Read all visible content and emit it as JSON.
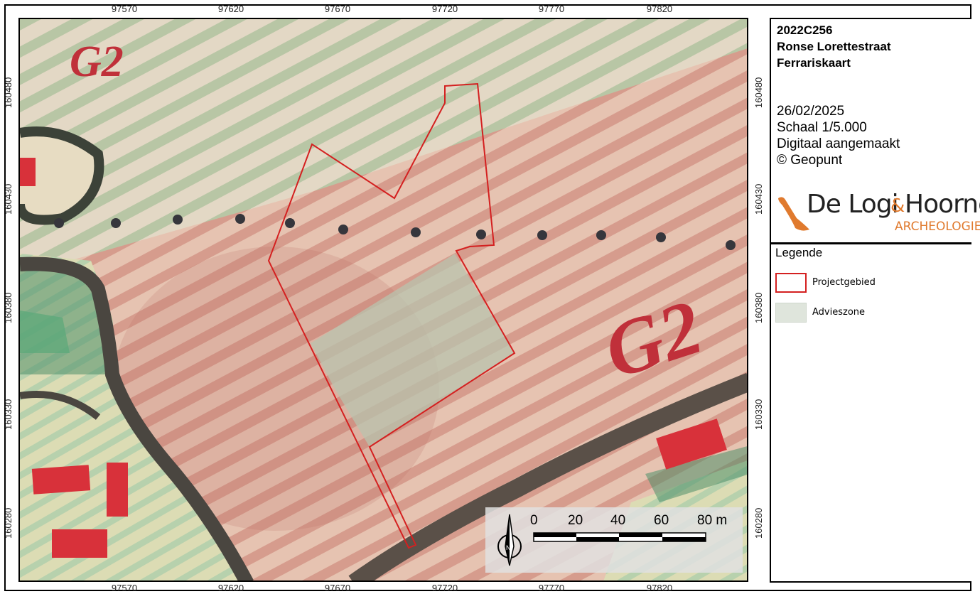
{
  "title_block": {
    "project_code": "2022C256",
    "project_name": "Ronse Lorettestraat",
    "map_type": "Ferrariskaart",
    "date": "26/02/2025",
    "scale": "Schaal 1/5.000",
    "creation": "Digitaal aangemaakt",
    "copyright": "© Geopunt"
  },
  "logo": {
    "name_part1": "De Logi",
    "ampersand": "&",
    "name_part2": "Hoorne",
    "subtitle": "ARCHEOLOGIE",
    "color_dark": "#222222",
    "color_accent": "#e07a2e"
  },
  "legend": {
    "title": "Legende",
    "items": [
      {
        "label": "Projectgebied",
        "type": "outline",
        "color": "#d42020"
      },
      {
        "label": "Advieszone",
        "type": "fill",
        "color": "#dfe5dc"
      }
    ]
  },
  "axes": {
    "x_labels": [
      "97570",
      "97620",
      "97670",
      "97720",
      "97770",
      "97820"
    ],
    "y_labels": [
      "160480",
      "160430",
      "160380",
      "160330",
      "160280"
    ]
  },
  "scalebar": {
    "labels": [
      "0",
      "20",
      "40",
      "60",
      "80 m"
    ]
  },
  "map": {
    "map_labels": [
      "G2",
      "G2",
      "G2"
    ],
    "colors": {
      "project_outline": "#d42020",
      "advice_zone": "#b8c3ad",
      "road": "#5a5048",
      "building": "#d8313a",
      "meadow": "#8fc4a0"
    }
  }
}
